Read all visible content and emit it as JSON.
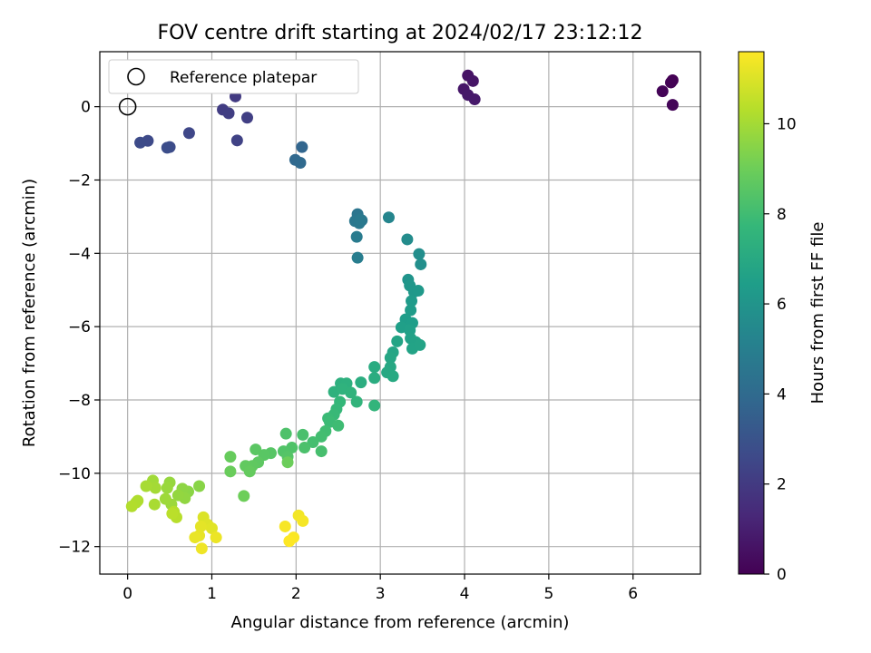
{
  "chart_data": {
    "type": "scatter",
    "title": "FOV centre drift starting at 2024/02/17 23:12:12",
    "xlabel": "Angular distance from reference (arcmin)",
    "ylabel": "Rotation from reference (arcmin)",
    "xlim": [
      -0.33,
      6.8
    ],
    "ylim": [
      -12.75,
      1.5
    ],
    "xticks": [
      0,
      1,
      2,
      3,
      4,
      5,
      6
    ],
    "yticks": [
      0,
      -2,
      -4,
      -6,
      -8,
      -10,
      -12
    ],
    "grid": true,
    "legend": {
      "placement": "top-left",
      "entries": [
        "Reference platepar"
      ]
    },
    "reference_point": {
      "x": 0,
      "y": 0
    },
    "colorbar": {
      "label": "Hours from first FF file",
      "range": [
        0,
        11.6
      ],
      "ticks": [
        0,
        2,
        4,
        6,
        8,
        10
      ],
      "colormap": "viridis",
      "stops": [
        "#440154",
        "#482878",
        "#3e4989",
        "#31688e",
        "#26828e",
        "#1f9e89",
        "#35b779",
        "#6ece58",
        "#b5de2b",
        "#fde725"
      ]
    },
    "points": [
      {
        "x": 6.47,
        "y": 0.72,
        "h": 0.0
      },
      {
        "x": 6.45,
        "y": 0.66,
        "h": 0.05
      },
      {
        "x": 6.35,
        "y": 0.42,
        "h": 0.1
      },
      {
        "x": 6.47,
        "y": 0.05,
        "h": 0.15
      },
      {
        "x": 4.04,
        "y": 0.85,
        "h": 0.6
      },
      {
        "x": 4.1,
        "y": 0.7,
        "h": 0.65
      },
      {
        "x": 3.99,
        "y": 0.48,
        "h": 0.7
      },
      {
        "x": 4.04,
        "y": 0.32,
        "h": 0.75
      },
      {
        "x": 4.12,
        "y": 0.2,
        "h": 0.8
      },
      {
        "x": 1.28,
        "y": 0.28,
        "h": 2.0
      },
      {
        "x": 1.13,
        "y": -0.08,
        "h": 2.1
      },
      {
        "x": 1.2,
        "y": -0.18,
        "h": 2.15
      },
      {
        "x": 1.42,
        "y": -0.3,
        "h": 2.2
      },
      {
        "x": 1.3,
        "y": -0.92,
        "h": 2.3
      },
      {
        "x": 0.73,
        "y": -0.72,
        "h": 2.5
      },
      {
        "x": 0.24,
        "y": -0.93,
        "h": 2.6
      },
      {
        "x": 0.15,
        "y": -0.98,
        "h": 2.65
      },
      {
        "x": 0.5,
        "y": -1.1,
        "h": 2.7
      },
      {
        "x": 0.47,
        "y": -1.12,
        "h": 2.75
      },
      {
        "x": 2.07,
        "y": -1.1,
        "h": 3.8
      },
      {
        "x": 1.99,
        "y": -1.45,
        "h": 3.9
      },
      {
        "x": 2.05,
        "y": -1.53,
        "h": 3.95
      },
      {
        "x": 2.73,
        "y": -2.93,
        "h": 4.5
      },
      {
        "x": 2.78,
        "y": -3.1,
        "h": 4.55
      },
      {
        "x": 2.7,
        "y": -3.12,
        "h": 4.6
      },
      {
        "x": 2.75,
        "y": -3.18,
        "h": 4.65
      },
      {
        "x": 2.76,
        "y": -3.08,
        "h": 4.7
      },
      {
        "x": 2.72,
        "y": -3.55,
        "h": 4.8
      },
      {
        "x": 2.73,
        "y": -4.12,
        "h": 4.9
      },
      {
        "x": 3.1,
        "y": -3.02,
        "h": 5.3
      },
      {
        "x": 3.32,
        "y": -3.62,
        "h": 5.6
      },
      {
        "x": 3.46,
        "y": -4.02,
        "h": 5.7
      },
      {
        "x": 3.48,
        "y": -4.3,
        "h": 5.75
      },
      {
        "x": 3.33,
        "y": -4.72,
        "h": 6.0
      },
      {
        "x": 3.35,
        "y": -4.88,
        "h": 6.1
      },
      {
        "x": 3.4,
        "y": -5.05,
        "h": 6.15
      },
      {
        "x": 3.45,
        "y": -5.02,
        "h": 6.2
      },
      {
        "x": 3.37,
        "y": -5.3,
        "h": 6.3
      },
      {
        "x": 3.36,
        "y": -5.55,
        "h": 6.35
      },
      {
        "x": 3.3,
        "y": -5.8,
        "h": 6.4
      },
      {
        "x": 3.38,
        "y": -5.9,
        "h": 6.45
      },
      {
        "x": 3.25,
        "y": -6.02,
        "h": 6.5
      },
      {
        "x": 3.35,
        "y": -6.1,
        "h": 6.55
      },
      {
        "x": 3.36,
        "y": -6.32,
        "h": 6.6
      },
      {
        "x": 3.42,
        "y": -6.42,
        "h": 6.65
      },
      {
        "x": 3.38,
        "y": -6.6,
        "h": 6.7
      },
      {
        "x": 3.47,
        "y": -6.5,
        "h": 6.72
      },
      {
        "x": 3.2,
        "y": -6.4,
        "h": 6.75
      },
      {
        "x": 3.15,
        "y": -6.7,
        "h": 6.8
      },
      {
        "x": 3.12,
        "y": -6.85,
        "h": 6.85
      },
      {
        "x": 3.12,
        "y": -7.1,
        "h": 6.9
      },
      {
        "x": 3.08,
        "y": -7.25,
        "h": 6.95
      },
      {
        "x": 3.15,
        "y": -7.35,
        "h": 7.0
      },
      {
        "x": 2.93,
        "y": -7.1,
        "h": 7.1
      },
      {
        "x": 2.93,
        "y": -7.4,
        "h": 7.15
      },
      {
        "x": 2.77,
        "y": -7.52,
        "h": 7.2
      },
      {
        "x": 2.53,
        "y": -7.55,
        "h": 7.3
      },
      {
        "x": 2.6,
        "y": -7.55,
        "h": 7.35
      },
      {
        "x": 2.45,
        "y": -7.78,
        "h": 7.4
      },
      {
        "x": 2.55,
        "y": -7.7,
        "h": 7.45
      },
      {
        "x": 2.65,
        "y": -7.8,
        "h": 7.5
      },
      {
        "x": 2.72,
        "y": -8.05,
        "h": 7.55
      },
      {
        "x": 2.93,
        "y": -8.15,
        "h": 7.6
      },
      {
        "x": 2.52,
        "y": -8.05,
        "h": 7.7
      },
      {
        "x": 2.48,
        "y": -8.25,
        "h": 7.75
      },
      {
        "x": 2.45,
        "y": -8.4,
        "h": 7.8
      },
      {
        "x": 2.38,
        "y": -8.5,
        "h": 7.85
      },
      {
        "x": 2.4,
        "y": -8.6,
        "h": 7.9
      },
      {
        "x": 2.5,
        "y": -8.7,
        "h": 7.95
      },
      {
        "x": 2.35,
        "y": -8.85,
        "h": 8.0
      },
      {
        "x": 2.3,
        "y": -9.0,
        "h": 8.05
      },
      {
        "x": 2.2,
        "y": -9.15,
        "h": 8.1
      },
      {
        "x": 2.3,
        "y": -9.4,
        "h": 8.15
      },
      {
        "x": 2.08,
        "y": -8.95,
        "h": 8.2
      },
      {
        "x": 2.1,
        "y": -9.3,
        "h": 8.25
      },
      {
        "x": 1.88,
        "y": -8.92,
        "h": 8.3
      },
      {
        "x": 1.95,
        "y": -9.3,
        "h": 8.35
      },
      {
        "x": 1.85,
        "y": -9.4,
        "h": 8.4
      },
      {
        "x": 1.9,
        "y": -9.55,
        "h": 8.45
      },
      {
        "x": 1.7,
        "y": -9.45,
        "h": 8.5
      },
      {
        "x": 1.62,
        "y": -9.5,
        "h": 8.55
      },
      {
        "x": 1.52,
        "y": -9.35,
        "h": 8.6
      },
      {
        "x": 1.55,
        "y": -9.7,
        "h": 8.65
      },
      {
        "x": 1.48,
        "y": -9.8,
        "h": 8.7
      },
      {
        "x": 1.4,
        "y": -9.8,
        "h": 8.75
      },
      {
        "x": 1.45,
        "y": -9.95,
        "h": 8.8
      },
      {
        "x": 1.22,
        "y": -9.55,
        "h": 8.85
      },
      {
        "x": 1.22,
        "y": -9.95,
        "h": 8.9
      },
      {
        "x": 1.9,
        "y": -9.7,
        "h": 8.95
      },
      {
        "x": 1.38,
        "y": -10.62,
        "h": 9.0
      },
      {
        "x": 0.85,
        "y": -10.35,
        "h": 9.5
      },
      {
        "x": 0.72,
        "y": -10.5,
        "h": 9.55
      },
      {
        "x": 0.65,
        "y": -10.42,
        "h": 9.6
      },
      {
        "x": 0.68,
        "y": -10.68,
        "h": 9.65
      },
      {
        "x": 0.6,
        "y": -10.6,
        "h": 9.7
      },
      {
        "x": 0.5,
        "y": -10.25,
        "h": 9.75
      },
      {
        "x": 0.47,
        "y": -10.4,
        "h": 9.8
      },
      {
        "x": 0.52,
        "y": -10.85,
        "h": 9.85
      },
      {
        "x": 0.45,
        "y": -10.7,
        "h": 9.9
      },
      {
        "x": 0.3,
        "y": -10.2,
        "h": 9.95
      },
      {
        "x": 0.33,
        "y": -10.4,
        "h": 10.0
      },
      {
        "x": 0.22,
        "y": -10.35,
        "h": 10.05
      },
      {
        "x": 0.32,
        "y": -10.85,
        "h": 10.1
      },
      {
        "x": 0.1,
        "y": -10.8,
        "h": 10.15
      },
      {
        "x": 0.12,
        "y": -10.75,
        "h": 10.2
      },
      {
        "x": 0.05,
        "y": -10.9,
        "h": 10.25
      },
      {
        "x": 0.55,
        "y": -11.05,
        "h": 10.3
      },
      {
        "x": 0.58,
        "y": -11.2,
        "h": 10.35
      },
      {
        "x": 0.53,
        "y": -11.1,
        "h": 10.4
      },
      {
        "x": 0.9,
        "y": -11.2,
        "h": 11.0
      },
      {
        "x": 0.95,
        "y": -11.4,
        "h": 11.05
      },
      {
        "x": 1.0,
        "y": -11.5,
        "h": 11.1
      },
      {
        "x": 0.87,
        "y": -11.45,
        "h": 11.15
      },
      {
        "x": 0.85,
        "y": -11.7,
        "h": 11.2
      },
      {
        "x": 0.8,
        "y": -11.75,
        "h": 11.25
      },
      {
        "x": 1.05,
        "y": -11.75,
        "h": 11.3
      },
      {
        "x": 0.88,
        "y": -12.05,
        "h": 11.35
      },
      {
        "x": 2.03,
        "y": -11.15,
        "h": 11.4
      },
      {
        "x": 2.08,
        "y": -11.3,
        "h": 11.45
      },
      {
        "x": 1.87,
        "y": -11.45,
        "h": 11.5
      },
      {
        "x": 1.97,
        "y": -11.75,
        "h": 11.55
      },
      {
        "x": 1.92,
        "y": -11.85,
        "h": 11.6
      }
    ]
  }
}
